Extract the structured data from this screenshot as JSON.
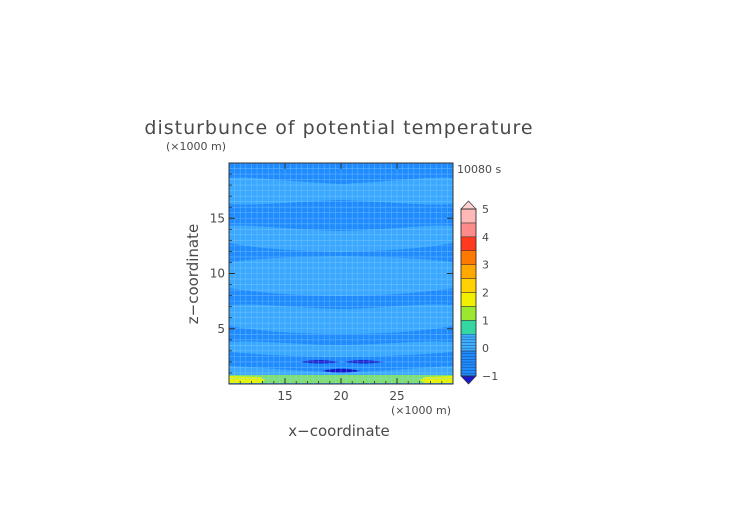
{
  "chart_data": {
    "type": "heatmap",
    "title": "disturbunce of potential temperature",
    "time_label": "10080 s",
    "xlabel": "x−coordinate",
    "ylabel": "z−coordinate",
    "x_unit": "(×1000 m)",
    "y_unit": "(×1000 m)",
    "xlim": [
      10,
      30
    ],
    "ylim": [
      0,
      20
    ],
    "x_ticks": [
      15,
      20,
      25
    ],
    "y_ticks": [
      5,
      10,
      15
    ],
    "grid": true,
    "colorbar": {
      "range": [
        -1,
        5
      ],
      "tick_values": [
        -1,
        0,
        1,
        2,
        3,
        4,
        5
      ],
      "tick_labels": [
        "−1",
        "0",
        "1",
        "2",
        "3",
        "4",
        "5"
      ],
      "levels": [
        {
          "from": -1.0,
          "to": -0.1,
          "color": "#1e8cff"
        },
        {
          "from": -0.1,
          "to": 0.5,
          "color": "#3eb0ff"
        },
        {
          "from": 0.5,
          "to": 1.0,
          "color": "#35d7a0"
        },
        {
          "from": 1.0,
          "to": 1.5,
          "color": "#9be830"
        },
        {
          "from": 1.5,
          "to": 2.0,
          "color": "#f0f000"
        },
        {
          "from": 2.0,
          "to": 2.5,
          "color": "#ffd200"
        },
        {
          "from": 2.5,
          "to": 3.0,
          "color": "#ffa800"
        },
        {
          "from": 3.0,
          "to": 3.5,
          "color": "#ff7800"
        },
        {
          "from": 3.5,
          "to": 4.0,
          "color": "#ff3a1e"
        },
        {
          "from": 4.0,
          "to": 4.5,
          "color": "#ff8a8a"
        },
        {
          "from": 4.5,
          "to": 5.0,
          "color": "#ffb8b8"
        }
      ],
      "under_color": "#1a1acc",
      "over_color": "#ffd0d0"
    },
    "field_levels": [
      -0.1,
      -0.4,
      -0.1,
      -0.4,
      -0.1
    ],
    "colors": {
      "plot_background": "#3aa8ff",
      "band_dark": "#1f8bff",
      "deep": "#1515c8",
      "near_surface": "#b8f030",
      "surface": "#e9f500",
      "grid_line": "#8fd0ff",
      "axis": "#333333"
    }
  }
}
